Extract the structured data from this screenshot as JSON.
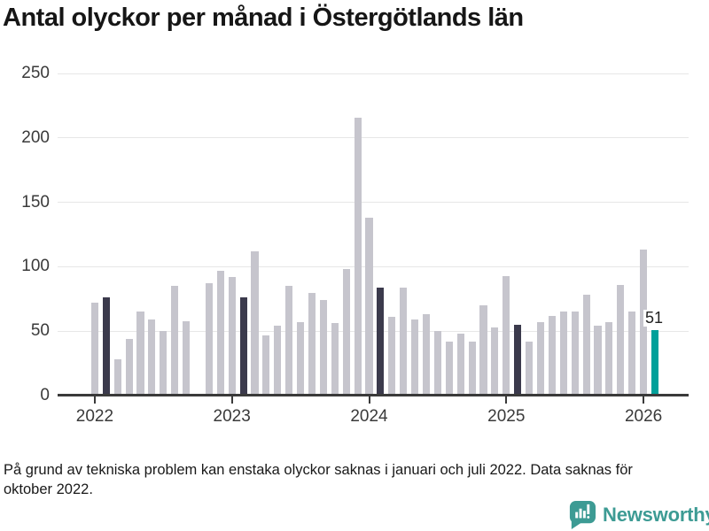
{
  "title": "Antal olyckor per månad i Östergötlands län",
  "footnote": "På grund av tekniska problem kan enstaka olyckor saknas i januari och juli 2022. Data saknas för\noktober 2022.",
  "branding": {
    "name": "Newsworthy",
    "icon": "newsworthy-speech-bubble-barchart-icon",
    "color": "#3d9b94"
  },
  "chart_data": {
    "type": "bar",
    "title": "Antal olyckor per månad i Östergötlands län",
    "xlabel": "",
    "ylabel": "",
    "ylim": [
      0,
      250
    ],
    "yticks": [
      0,
      50,
      100,
      150,
      200,
      250
    ],
    "grid": "horizontal",
    "year_ticks": [
      "2022",
      "2023",
      "2024",
      "2025",
      "2026"
    ],
    "missing_months": [
      "2022-10"
    ],
    "annotation": {
      "text": "51",
      "month_index": 49
    },
    "colors": {
      "bar_default": "#c6c5cd",
      "bar_highlight": "#3b3a4c",
      "bar_latest": "#00a09a",
      "axis": "#3a3a3a",
      "grid": "#e7e7e7"
    },
    "series": [
      {
        "month": "2022-01",
        "value": 72,
        "role": "default"
      },
      {
        "month": "2022-02",
        "value": 76,
        "role": "highlight"
      },
      {
        "month": "2022-03",
        "value": 28,
        "role": "default"
      },
      {
        "month": "2022-04",
        "value": 44,
        "role": "default"
      },
      {
        "month": "2022-05",
        "value": 65,
        "role": "default"
      },
      {
        "month": "2022-06",
        "value": 59,
        "role": "default"
      },
      {
        "month": "2022-07",
        "value": 50,
        "role": "default"
      },
      {
        "month": "2022-08",
        "value": 85,
        "role": "default"
      },
      {
        "month": "2022-09",
        "value": 58,
        "role": "default"
      },
      {
        "month": "2022-10",
        "value": null,
        "role": "default"
      },
      {
        "month": "2022-11",
        "value": 87,
        "role": "default"
      },
      {
        "month": "2022-12",
        "value": 97,
        "role": "default"
      },
      {
        "month": "2023-01",
        "value": 92,
        "role": "default"
      },
      {
        "month": "2023-02",
        "value": 76,
        "role": "highlight"
      },
      {
        "month": "2023-03",
        "value": 112,
        "role": "default"
      },
      {
        "month": "2023-04",
        "value": 47,
        "role": "default"
      },
      {
        "month": "2023-05",
        "value": 54,
        "role": "default"
      },
      {
        "month": "2023-06",
        "value": 85,
        "role": "default"
      },
      {
        "month": "2023-07",
        "value": 57,
        "role": "default"
      },
      {
        "month": "2023-08",
        "value": 80,
        "role": "default"
      },
      {
        "month": "2023-09",
        "value": 74,
        "role": "default"
      },
      {
        "month": "2023-10",
        "value": 56,
        "role": "default"
      },
      {
        "month": "2023-11",
        "value": 98,
        "role": "default"
      },
      {
        "month": "2023-12",
        "value": 216,
        "role": "default"
      },
      {
        "month": "2024-01",
        "value": 138,
        "role": "default"
      },
      {
        "month": "2024-02",
        "value": 84,
        "role": "highlight"
      },
      {
        "month": "2024-03",
        "value": 61,
        "role": "default"
      },
      {
        "month": "2024-04",
        "value": 84,
        "role": "default"
      },
      {
        "month": "2024-05",
        "value": 59,
        "role": "default"
      },
      {
        "month": "2024-06",
        "value": 63,
        "role": "default"
      },
      {
        "month": "2024-07",
        "value": 50,
        "role": "default"
      },
      {
        "month": "2024-08",
        "value": 42,
        "role": "default"
      },
      {
        "month": "2024-09",
        "value": 48,
        "role": "default"
      },
      {
        "month": "2024-10",
        "value": 42,
        "role": "default"
      },
      {
        "month": "2024-11",
        "value": 70,
        "role": "default"
      },
      {
        "month": "2024-12",
        "value": 53,
        "role": "default"
      },
      {
        "month": "2025-01",
        "value": 93,
        "role": "default"
      },
      {
        "month": "2025-02",
        "value": 55,
        "role": "highlight"
      },
      {
        "month": "2025-03",
        "value": 42,
        "role": "default"
      },
      {
        "month": "2025-04",
        "value": 57,
        "role": "default"
      },
      {
        "month": "2025-05",
        "value": 62,
        "role": "default"
      },
      {
        "month": "2025-06",
        "value": 65,
        "role": "default"
      },
      {
        "month": "2025-07",
        "value": 65,
        "role": "default"
      },
      {
        "month": "2025-08",
        "value": 78,
        "role": "default"
      },
      {
        "month": "2025-09",
        "value": 54,
        "role": "default"
      },
      {
        "month": "2025-10",
        "value": 57,
        "role": "default"
      },
      {
        "month": "2025-11",
        "value": 86,
        "role": "default"
      },
      {
        "month": "2025-12",
        "value": 65,
        "role": "default"
      },
      {
        "month": "2026-01",
        "value": 113,
        "role": "default"
      },
      {
        "month": "2026-02",
        "value": 51,
        "role": "latest"
      }
    ]
  }
}
